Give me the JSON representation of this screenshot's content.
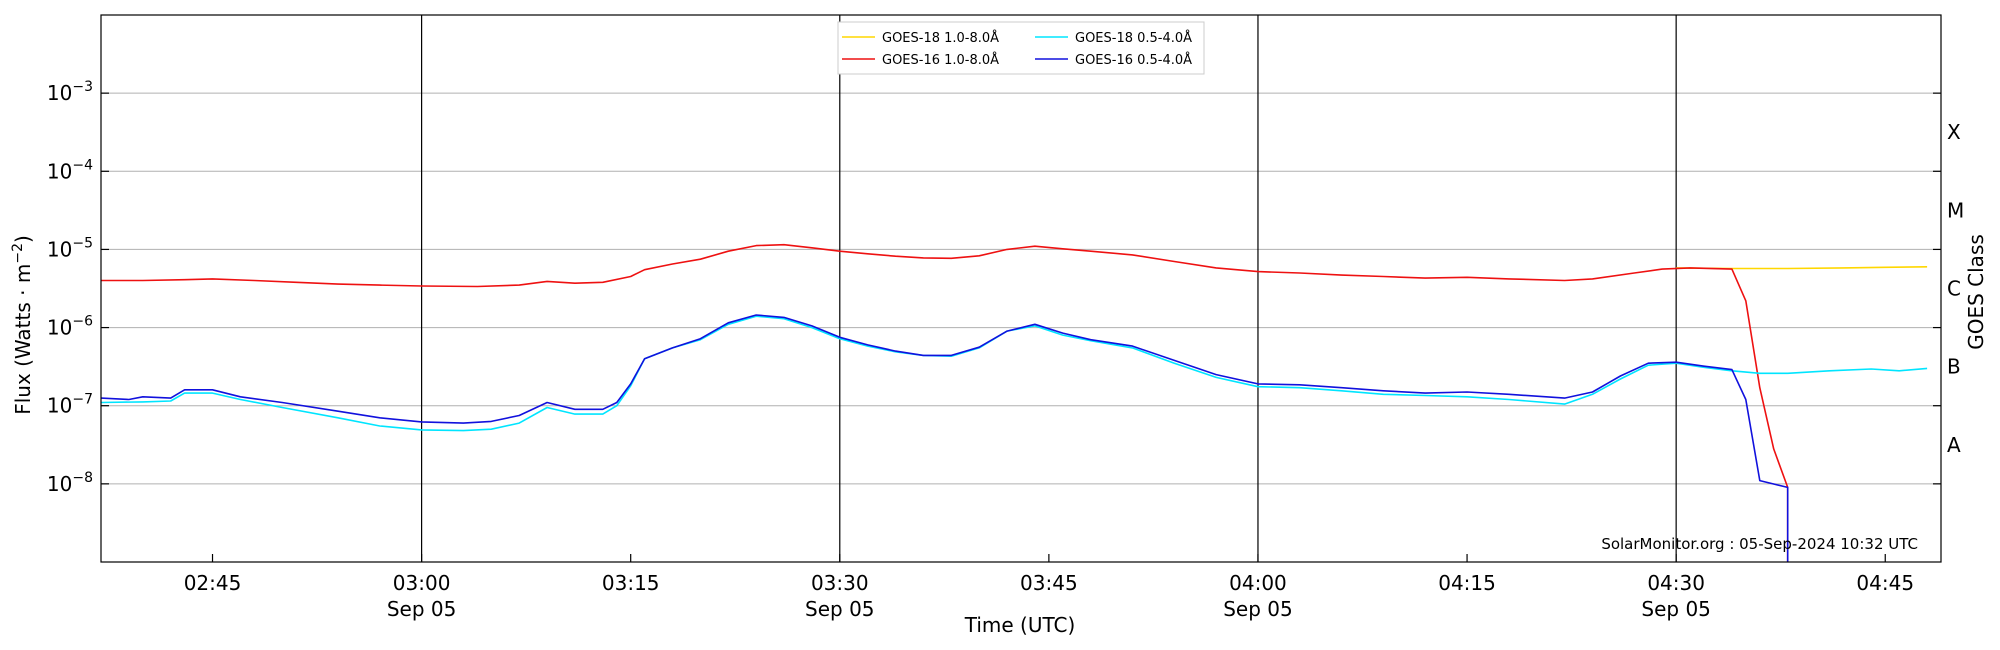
{
  "chart_data": {
    "type": "line",
    "ylabel": "Flux (Watts · m",
    "ylabel_sup": "−2",
    "ylabel_close": ")",
    "xlabel": "Time (UTC)",
    "right_label": "GOES Class",
    "credit": "SolarMonitor.org : 05-Sep-2024 10:32 UTC",
    "y_scale": "log",
    "ylim": [
      1e-09,
      0.01
    ],
    "xlim": [
      "02:37",
      "04:49"
    ],
    "grid": "horizontal",
    "legend_position": "top-center",
    "x_ticks": [
      {
        "time": "02:45",
        "label": "02:45",
        "sub": ""
      },
      {
        "time": "03:00",
        "label": "03:00",
        "sub": "Sep 05"
      },
      {
        "time": "03:15",
        "label": "03:15",
        "sub": ""
      },
      {
        "time": "03:30",
        "label": "03:30",
        "sub": "Sep 05"
      },
      {
        "time": "03:45",
        "label": "03:45",
        "sub": ""
      },
      {
        "time": "04:00",
        "label": "04:00",
        "sub": "Sep 05"
      },
      {
        "time": "04:15",
        "label": "04:15",
        "sub": ""
      },
      {
        "time": "04:30",
        "label": "04:30",
        "sub": "Sep 05"
      },
      {
        "time": "04:45",
        "label": "04:45",
        "sub": ""
      }
    ],
    "vlines": [
      "03:00",
      "03:30",
      "04:00",
      "04:30"
    ],
    "y_ticks": [
      {
        "value": 1e-08,
        "exp": "−8"
      },
      {
        "value": 1e-07,
        "exp": "−7"
      },
      {
        "value": 1e-06,
        "exp": "−6"
      },
      {
        "value": 1e-05,
        "exp": "−5"
      },
      {
        "value": 0.0001,
        "exp": "−4"
      },
      {
        "value": 0.001,
        "exp": "−3"
      }
    ],
    "goes_classes": [
      {
        "label": "A",
        "value": 3.16e-08
      },
      {
        "label": "B",
        "value": 3.16e-07
      },
      {
        "label": "C",
        "value": 3.16e-06
      },
      {
        "label": "M",
        "value": 3.16e-05
      },
      {
        "label": "X",
        "value": 0.000316
      }
    ],
    "series": [
      {
        "name": "GOES-18 1.0-8.0Å",
        "color": "#ffd700",
        "points": [
          [
            "04:30",
            5.8e-06
          ],
          [
            "04:34",
            5.7e-06
          ],
          [
            "04:38",
            5.7e-06
          ],
          [
            "04:42",
            5.8e-06
          ],
          [
            "04:45",
            5.9e-06
          ],
          [
            "04:48",
            6e-06
          ]
        ]
      },
      {
        "name": "GOES-16 1.0-8.0Å",
        "color": "#ee1111",
        "points": [
          [
            "02:37",
            4e-06
          ],
          [
            "02:40",
            4e-06
          ],
          [
            "02:43",
            4.1e-06
          ],
          [
            "02:45",
            4.2e-06
          ],
          [
            "02:48",
            4e-06
          ],
          [
            "02:51",
            3.8e-06
          ],
          [
            "02:54",
            3.6e-06
          ],
          [
            "02:57",
            3.5e-06
          ],
          [
            "03:00",
            3.4e-06
          ],
          [
            "03:04",
            3.35e-06
          ],
          [
            "03:07",
            3.5e-06
          ],
          [
            "03:09",
            3.9e-06
          ],
          [
            "03:11",
            3.7e-06
          ],
          [
            "03:13",
            3.8e-06
          ],
          [
            "03:15",
            4.5e-06
          ],
          [
            "03:16",
            5.5e-06
          ],
          [
            "03:18",
            6.5e-06
          ],
          [
            "03:20",
            7.5e-06
          ],
          [
            "03:22",
            9.5e-06
          ],
          [
            "03:24",
            1.12e-05
          ],
          [
            "03:26",
            1.15e-05
          ],
          [
            "03:28",
            1.05e-05
          ],
          [
            "03:30",
            9.5e-06
          ],
          [
            "03:32",
            8.8e-06
          ],
          [
            "03:34",
            8.2e-06
          ],
          [
            "03:36",
            7.8e-06
          ],
          [
            "03:38",
            7.7e-06
          ],
          [
            "03:40",
            8.3e-06
          ],
          [
            "03:42",
            1e-05
          ],
          [
            "03:44",
            1.1e-05
          ],
          [
            "03:46",
            1.02e-05
          ],
          [
            "03:48",
            9.5e-06
          ],
          [
            "03:51",
            8.5e-06
          ],
          [
            "03:54",
            7e-06
          ],
          [
            "03:57",
            5.8e-06
          ],
          [
            "04:00",
            5.2e-06
          ],
          [
            "04:03",
            5e-06
          ],
          [
            "04:06",
            4.7e-06
          ],
          [
            "04:09",
            4.5e-06
          ],
          [
            "04:12",
            4.3e-06
          ],
          [
            "04:15",
            4.4e-06
          ],
          [
            "04:18",
            4.2e-06
          ],
          [
            "04:22",
            4e-06
          ],
          [
            "04:24",
            4.2e-06
          ],
          [
            "04:27",
            5e-06
          ],
          [
            "04:29",
            5.6e-06
          ],
          [
            "04:31",
            5.8e-06
          ],
          [
            "04:34",
            5.6e-06
          ],
          [
            "04:35",
            2.2e-06
          ],
          [
            "04:36",
            1.7e-07
          ],
          [
            "04:37",
            2.8e-08
          ],
          [
            "04:38",
            9e-09
          ],
          [
            "04:38",
            1e-09
          ]
        ]
      },
      {
        "name": "GOES-18 0.5-4.0Å",
        "color": "#00e5ff",
        "points": [
          [
            "02:37",
            1.1e-07
          ],
          [
            "02:40",
            1.12e-07
          ],
          [
            "02:42",
            1.15e-07
          ],
          [
            "02:43",
            1.45e-07
          ],
          [
            "02:45",
            1.45e-07
          ],
          [
            "02:47",
            1.2e-07
          ],
          [
            "02:50",
            9.5e-08
          ],
          [
            "02:54",
            7e-08
          ],
          [
            "02:57",
            5.5e-08
          ],
          [
            "03:00",
            4.9e-08
          ],
          [
            "03:03",
            4.8e-08
          ],
          [
            "03:05",
            5e-08
          ],
          [
            "03:07",
            6e-08
          ],
          [
            "03:09",
            9.5e-08
          ],
          [
            "03:11",
            7.8e-08
          ],
          [
            "03:13",
            7.8e-08
          ],
          [
            "03:14",
            1e-07
          ],
          [
            "03:15",
            1.8e-07
          ],
          [
            "03:16",
            4e-07
          ],
          [
            "03:18",
            5.5e-07
          ],
          [
            "03:20",
            7e-07
          ],
          [
            "03:22",
            1.1e-06
          ],
          [
            "03:24",
            1.4e-06
          ],
          [
            "03:26",
            1.3e-06
          ],
          [
            "03:28",
            1e-06
          ],
          [
            "03:30",
            7.2e-07
          ],
          [
            "03:32",
            5.8e-07
          ],
          [
            "03:34",
            4.9e-07
          ],
          [
            "03:36",
            4.4e-07
          ],
          [
            "03:38",
            4.3e-07
          ],
          [
            "03:40",
            5.5e-07
          ],
          [
            "03:42",
            9e-07
          ],
          [
            "03:44",
            1.05e-06
          ],
          [
            "03:46",
            8e-07
          ],
          [
            "03:48",
            6.8e-07
          ],
          [
            "03:51",
            5.5e-07
          ],
          [
            "03:54",
            3.5e-07
          ],
          [
            "03:57",
            2.3e-07
          ],
          [
            "04:00",
            1.75e-07
          ],
          [
            "04:03",
            1.7e-07
          ],
          [
            "04:06",
            1.55e-07
          ],
          [
            "04:09",
            1.4e-07
          ],
          [
            "04:12",
            1.35e-07
          ],
          [
            "04:15",
            1.3e-07
          ],
          [
            "04:18",
            1.2e-07
          ],
          [
            "04:22",
            1.05e-07
          ],
          [
            "04:24",
            1.4e-07
          ],
          [
            "04:26",
            2.2e-07
          ],
          [
            "04:28",
            3.3e-07
          ],
          [
            "04:30",
            3.5e-07
          ],
          [
            "04:32",
            3.1e-07
          ],
          [
            "04:34",
            2.8e-07
          ],
          [
            "04:36",
            2.6e-07
          ],
          [
            "04:38",
            2.6e-07
          ],
          [
            "04:41",
            2.8e-07
          ],
          [
            "04:44",
            2.95e-07
          ],
          [
            "04:46",
            2.8e-07
          ],
          [
            "04:48",
            3e-07
          ]
        ]
      },
      {
        "name": "GOES-16 0.5-4.0Å",
        "color": "#1111dd",
        "points": [
          [
            "02:37",
            1.25e-07
          ],
          [
            "02:39",
            1.2e-07
          ],
          [
            "02:40",
            1.3e-07
          ],
          [
            "02:42",
            1.25e-07
          ],
          [
            "02:43",
            1.6e-07
          ],
          [
            "02:45",
            1.6e-07
          ],
          [
            "02:47",
            1.3e-07
          ],
          [
            "02:50",
            1.1e-07
          ],
          [
            "02:54",
            8.5e-08
          ],
          [
            "02:57",
            7e-08
          ],
          [
            "03:00",
            6.2e-08
          ],
          [
            "03:03",
            6e-08
          ],
          [
            "03:05",
            6.3e-08
          ],
          [
            "03:07",
            7.5e-08
          ],
          [
            "03:09",
            1.1e-07
          ],
          [
            "03:11",
            9e-08
          ],
          [
            "03:13",
            9e-08
          ],
          [
            "03:14",
            1.1e-07
          ],
          [
            "03:15",
            1.9e-07
          ],
          [
            "03:16",
            4e-07
          ],
          [
            "03:18",
            5.5e-07
          ],
          [
            "03:20",
            7.2e-07
          ],
          [
            "03:22",
            1.15e-06
          ],
          [
            "03:24",
            1.45e-06
          ],
          [
            "03:26",
            1.35e-06
          ],
          [
            "03:28",
            1.05e-06
          ],
          [
            "03:30",
            7.5e-07
          ],
          [
            "03:32",
            6e-07
          ],
          [
            "03:34",
            5e-07
          ],
          [
            "03:36",
            4.4e-07
          ],
          [
            "03:38",
            4.4e-07
          ],
          [
            "03:40",
            5.6e-07
          ],
          [
            "03:42",
            9e-07
          ],
          [
            "03:44",
            1.1e-06
          ],
          [
            "03:46",
            8.5e-07
          ],
          [
            "03:48",
            7e-07
          ],
          [
            "03:51",
            5.8e-07
          ],
          [
            "03:54",
            3.8e-07
          ],
          [
            "03:57",
            2.5e-07
          ],
          [
            "04:00",
            1.9e-07
          ],
          [
            "04:03",
            1.85e-07
          ],
          [
            "04:06",
            1.7e-07
          ],
          [
            "04:09",
            1.55e-07
          ],
          [
            "04:12",
            1.45e-07
          ],
          [
            "04:15",
            1.5e-07
          ],
          [
            "04:18",
            1.4e-07
          ],
          [
            "04:22",
            1.25e-07
          ],
          [
            "04:24",
            1.5e-07
          ],
          [
            "04:26",
            2.4e-07
          ],
          [
            "04:28",
            3.5e-07
          ],
          [
            "04:30",
            3.6e-07
          ],
          [
            "04:32",
            3.2e-07
          ],
          [
            "04:34",
            2.9e-07
          ],
          [
            "04:35",
            1.2e-07
          ],
          [
            "04:36",
            1.1e-08
          ],
          [
            "04:38",
            9e-09
          ],
          [
            "04:38",
            1e-09
          ]
        ]
      }
    ]
  }
}
